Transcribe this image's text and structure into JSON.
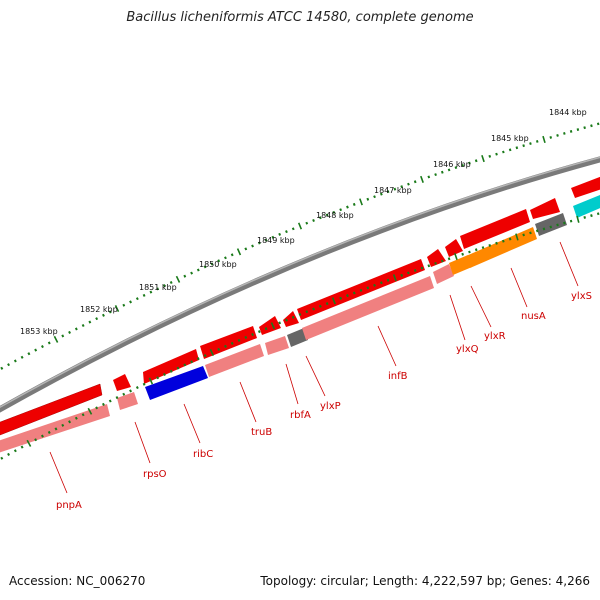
{
  "title": "Bacillus licheniformis ATCC 14580, complete genome",
  "footer": {
    "accession": "Accession: NC_006270",
    "topology": "Topology: circular; Length: 4,222,597 bp; Genes: 4,266"
  },
  "scale_labels": [
    "1844 kbp",
    "1845 kbp",
    "1846 kbp",
    "1847 kbp",
    "1848 kbp",
    "1849 kbp",
    "1850 kbp",
    "1851 kbp",
    "1852 kbp",
    "1853 kbp"
  ],
  "colors": {
    "backbone": "#7a7a7a",
    "feature_red": "#ee0000",
    "feature_pink": "#f08080",
    "feature_blue": "#0000dd",
    "feature_orange": "#ff8800",
    "feature_gray": "#666666",
    "feature_cyan": "#00cccc",
    "tick_green": "#1a7a1a",
    "gene_label": "#cc0000"
  },
  "gene_labels": [
    "pnpA",
    "rpsO",
    "ribC",
    "truB",
    "rbfA",
    "ylxP",
    "infB",
    "ylxQ",
    "ylxR",
    "nusA",
    "ylxS"
  ]
}
